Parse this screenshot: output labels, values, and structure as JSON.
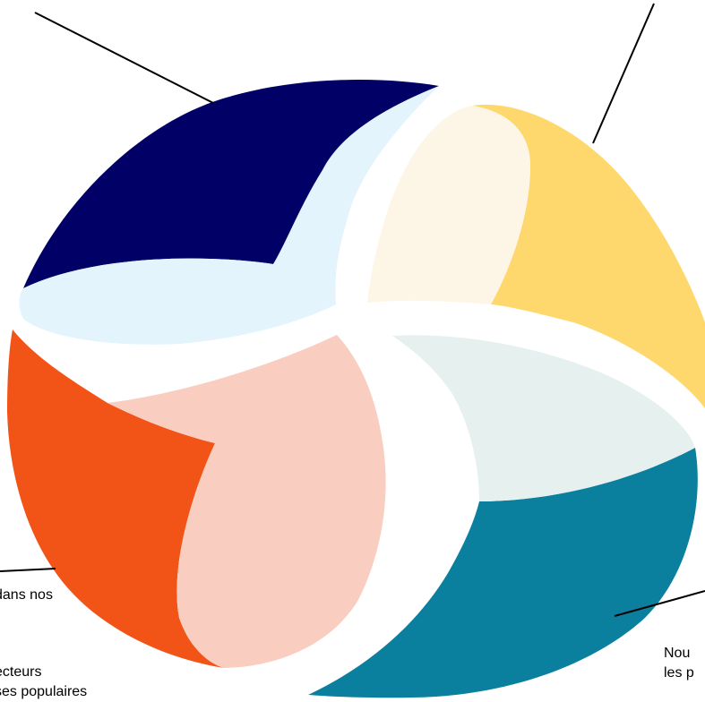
{
  "diagram": {
    "segments": [
      {
        "id": "top-left",
        "outer_color": "#000066",
        "inner_color": "#E3F4FC"
      },
      {
        "id": "top-right",
        "outer_color": "#FED86C",
        "inner_color": "#FDF6E6"
      },
      {
        "id": "bottom-right",
        "outer_color": "#0B809E",
        "inner_color": "#E5F0EF"
      },
      {
        "id": "bottom-left",
        "outer_color": "#F25316",
        "inner_color": "#F9CDBF"
      }
    ],
    "leader_color": "#000000"
  },
  "captions": {
    "bottom_left": [
      "dans nos",
      "ecteurs",
      "ses populaires"
    ],
    "bottom_right": [
      "Nou",
      "les p"
    ]
  }
}
